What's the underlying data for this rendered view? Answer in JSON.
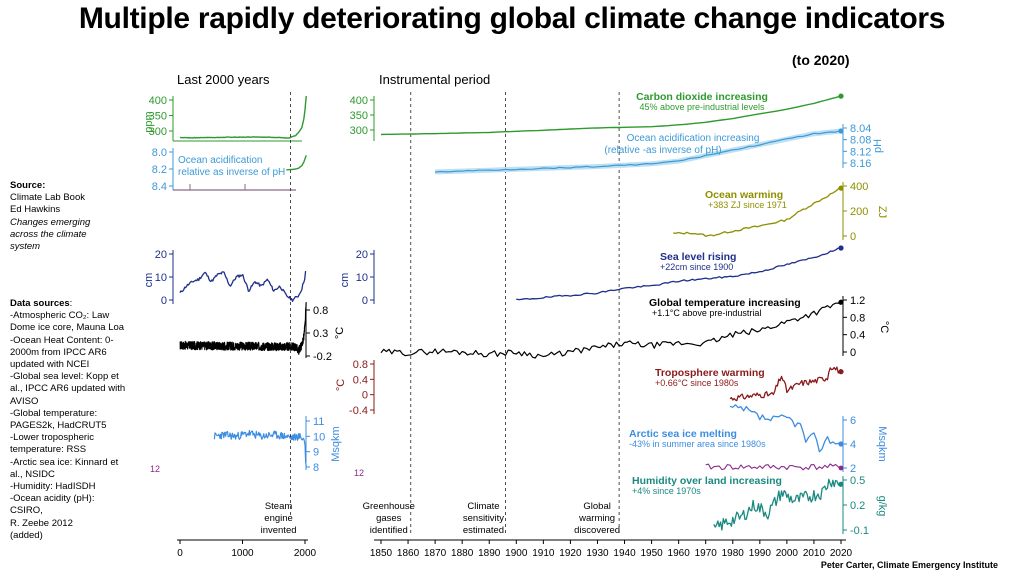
{
  "title": "Multiple rapidly deteriorating global climate change indicators",
  "subtitle": "(to 2020)",
  "credit": "Peter Carter, Climate Emergency Institute",
  "source": {
    "heading": "Source:",
    "lines": [
      "Climate Lab Book",
      "Ed Hawkins"
    ],
    "italic_lines": [
      "Changes emerging",
      "across the climate",
      "system"
    ]
  },
  "data_sources": {
    "heading": "Data sources",
    "lines": [
      "-Atmospheric CO₂: Law",
      "Dome ice core, Mauna Loa",
      "-Ocean Heat Content:  0-",
      "2000m from IPCC AR6",
      "updated with NCEI",
      "-Global sea level: Kopp et",
      "al., IPCC AR6 updated with",
      "AVISO",
      "-Global temperature:",
      "PAGES2k,  HadCRUT5",
      "-Lower tropospheric",
      "temperature:  RSS",
      "-Arctic sea ice: Kinnard et",
      "al., NSIDC",
      "-Humidity: HadISDH",
      "-Ocean acidity (pH):",
      "  CSIRO,",
      "  R. Zeebe  2012",
      "  (added)"
    ]
  },
  "chart_data": [
    {
      "type": "line",
      "panel": "Last 2000 years",
      "events": [
        {
          "year": 1769,
          "label": "Steam engine invented"
        }
      ],
      "x_ticks": [
        0,
        1000,
        2000
      ],
      "series": [
        {
          "name": "CO2",
          "unit": "ppm",
          "ticks": [
            300,
            350,
            400
          ],
          "color": "#2e9a2e",
          "x": [
            0,
            200,
            400,
            600,
            800,
            1000,
            1200,
            1400,
            1600,
            1700,
            1750,
            1800,
            1850,
            1900,
            1950,
            1980,
            2000,
            2020
          ],
          "y": [
            279,
            278,
            279,
            279,
            280,
            280,
            281,
            280,
            279,
            277,
            277,
            282,
            285,
            296,
            311,
            338,
            369,
            413
          ]
        },
        {
          "name": "Ocean acidification",
          "label": [
            "Ocean acidification",
            "relative as inverse of pH"
          ],
          "ticks": [
            8.0,
            8.2,
            8.4
          ],
          "color": "#3c9ad6",
          "x": [
            0,
            500,
            1000,
            1500,
            1700,
            1800,
            1850,
            1900,
            1950,
            1980,
            2000,
            2020
          ],
          "y": [
            8.21,
            8.21,
            8.21,
            8.21,
            8.21,
            8.205,
            8.2,
            8.19,
            8.16,
            8.12,
            8.08,
            8.04
          ]
        },
        {
          "name": "Sea level",
          "unit": "cm",
          "ticks": [
            0,
            10,
            20
          ],
          "color": "#1f2f8a",
          "x": [
            0,
            100,
            200,
            300,
            400,
            500,
            600,
            700,
            800,
            900,
            1000,
            1100,
            1200,
            1300,
            1400,
            1500,
            1600,
            1700,
            1750,
            1800,
            1850,
            1900,
            1950,
            2000,
            2020
          ],
          "y": [
            3,
            6,
            8,
            9,
            12,
            8,
            11,
            12,
            6,
            10,
            11,
            4,
            8,
            6,
            9,
            4,
            6,
            2,
            1,
            0,
            1,
            2,
            5,
            10,
            15
          ]
        },
        {
          "name": "Global temperature",
          "unit": "°C",
          "ticks": [
            -0.2,
            0.3,
            0.8
          ],
          "color": "#000000",
          "x": [
            0,
            1850,
            1900,
            1950,
            1980,
            2000,
            2020
          ],
          "y": [
            0.03,
            0.0,
            -0.08,
            0.05,
            0.2,
            0.45,
            0.95
          ]
        },
        {
          "name": "Arctic sea ice",
          "unit": "Msqkm",
          "ticks": [
            8,
            9,
            10,
            11
          ],
          "color": "#3c8de0",
          "x": [
            550,
            700,
            900,
            1100,
            1300,
            1500,
            1700,
            1800,
            1900,
            1950,
            1980,
            2000,
            2010,
            2020
          ],
          "y": [
            10,
            10.1,
            10,
            10.2,
            10,
            10.1,
            10,
            9.9,
            10,
            9.9,
            9.8,
            9.5,
            8.5,
            7.9
          ]
        }
      ]
    },
    {
      "type": "line",
      "panel": "Instrumental period",
      "xlim": [
        1850,
        2020
      ],
      "x_ticks": [
        1850,
        1860,
        1870,
        1880,
        1890,
        1900,
        1910,
        1920,
        1930,
        1940,
        1950,
        1960,
        1970,
        1980,
        1990,
        2000,
        2010,
        2020
      ],
      "events": [
        {
          "year": 1861,
          "label": "Greenhouse gases identified"
        },
        {
          "year": 1896,
          "label": "Climate sensitivity estimated"
        },
        {
          "year": 1938,
          "label": "Global warming discovered"
        }
      ],
      "series": [
        {
          "name": "Carbon dioxide increasing",
          "note": "45% above pre-industrial levels",
          "unit": "ppm",
          "ticks": [
            300,
            350,
            400
          ],
          "color": "#2e9a2e",
          "x": [
            1850,
            1870,
            1890,
            1910,
            1930,
            1950,
            1960,
            1970,
            1980,
            1990,
            2000,
            2010,
            2020
          ],
          "y": [
            285,
            288,
            292,
            299,
            307,
            311,
            317,
            326,
            338,
            354,
            369,
            389,
            413
          ]
        },
        {
          "name": "Ocean acidification increasing",
          "note": "(relative -as inverse of  pH)",
          "unit": "pH",
          "ticks": [
            8.04,
            8.08,
            8.12,
            8.16
          ],
          "color": "#3c9ad6",
          "x": [
            1870,
            1900,
            1930,
            1950,
            1960,
            1970,
            1980,
            1990,
            2000,
            2010,
            2020
          ],
          "y": [
            8.19,
            8.18,
            8.17,
            8.16,
            8.15,
            8.13,
            8.11,
            8.09,
            8.07,
            8.05,
            8.04
          ]
        },
        {
          "name": "Ocean warming",
          "note": "+383 ZJ since 1971",
          "unit": "ZJ",
          "ticks": [
            0,
            200,
            400
          ],
          "color": "#8f8f00",
          "x": [
            1958,
            1965,
            1971,
            1980,
            1990,
            2000,
            2005,
            2010,
            2015,
            2020
          ],
          "y": [
            20,
            25,
            0,
            40,
            80,
            130,
            200,
            260,
            320,
            383
          ]
        },
        {
          "name": "Sea level rising",
          "note": "+22cm since 1900",
          "unit": "cm",
          "ticks": [
            0,
            10,
            20
          ],
          "color": "#1f2f8a",
          "x": [
            1900,
            1910,
            1920,
            1930,
            1940,
            1950,
            1960,
            1970,
            1980,
            1990,
            2000,
            2010,
            2020
          ],
          "y": [
            0,
            1,
            2,
            3,
            5,
            6,
            8,
            9,
            10,
            12,
            15,
            18,
            22
          ]
        },
        {
          "name": "Global temperature increasing",
          "note": "+1.1°C above pre-industrial",
          "unit": "°C",
          "ticks": [
            0,
            0.4,
            0.8,
            1.2
          ],
          "color": "#000000",
          "x": [
            1850,
            1860,
            1870,
            1880,
            1890,
            1900,
            1910,
            1920,
            1930,
            1940,
            1950,
            1960,
            1970,
            1980,
            1990,
            2000,
            2010,
            2020
          ],
          "y": [
            0.0,
            -0.02,
            0.02,
            0.0,
            -0.05,
            0.0,
            -0.1,
            0.0,
            0.1,
            0.2,
            0.15,
            0.2,
            0.2,
            0.4,
            0.5,
            0.7,
            0.9,
            1.15
          ]
        },
        {
          "name": "Troposphere warming",
          "note": "+0.66°C since 1980s",
          "unit": "°C",
          "ticks": [
            -0.4,
            0,
            0.4,
            0.8
          ],
          "color": "#8b1a1a",
          "x": [
            1979,
            1985,
            1990,
            1995,
            1998,
            2000,
            2005,
            2010,
            2015,
            2016,
            2020
          ],
          "y": [
            -0.1,
            -0.05,
            0.0,
            0.0,
            0.5,
            0.1,
            0.3,
            0.35,
            0.45,
            0.75,
            0.6
          ]
        },
        {
          "name": "Arctic sea ice melting",
          "note": "-43% in summer area since 1980s",
          "unit": "Msqkm",
          "ticks": [
            2,
            4,
            6
          ],
          "color": "#3c8de0",
          "x": [
            1979,
            1985,
            1990,
            1995,
            2000,
            2005,
            2007,
            2010,
            2012,
            2015,
            2020
          ],
          "y": [
            7.0,
            6.8,
            6.2,
            6.0,
            6.2,
            5.5,
            4.3,
            4.6,
            3.6,
            4.4,
            4.0
          ]
        },
        {
          "name": "Humidity over land increasing",
          "note": "+4% since 1970s",
          "unit": "g/kg",
          "ticks": [
            -0.1,
            0.2,
            0.5
          ],
          "color": "#1a8a80",
          "x": [
            1973,
            1978,
            1983,
            1988,
            1993,
            1998,
            2003,
            2008,
            2013,
            2016,
            2020
          ],
          "y": [
            -0.1,
            0.0,
            0.05,
            0.2,
            0.1,
            0.35,
            0.25,
            0.3,
            0.35,
            0.5,
            0.45
          ]
        }
      ]
    }
  ]
}
